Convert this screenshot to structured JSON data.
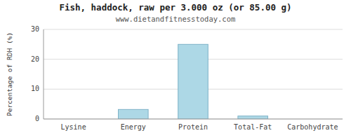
{
  "chart_data": {
    "type": "bar",
    "title": "Fish, haddock, raw per 3.000 oz (or 85.00 g)",
    "subtitle": "www.dietandfitnesstoday.com",
    "categories": [
      "Lysine",
      "Energy",
      "Protein",
      "Total-Fat",
      "Carbohydrate"
    ],
    "values": [
      0,
      3.2,
      25.0,
      1.0,
      0
    ],
    "color": "#add8e6",
    "ylabel": "Percentage of RDH (%)",
    "ylim": [
      0,
      30
    ],
    "yticks": [
      0,
      10,
      20,
      30
    ],
    "grid": true
  }
}
